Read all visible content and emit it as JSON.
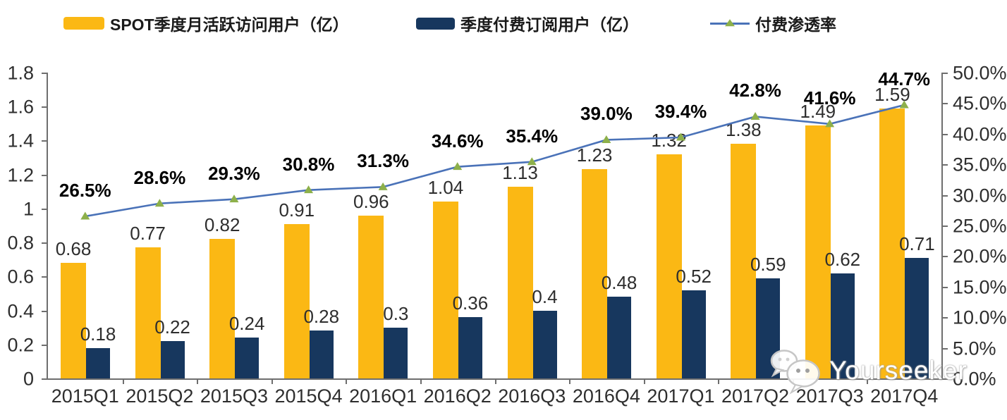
{
  "chart_data": {
    "type": "combo-bar-line",
    "categories": [
      "2015Q1",
      "2015Q2",
      "2015Q3",
      "2015Q4",
      "2016Q1",
      "2016Q2",
      "2016Q3",
      "2016Q4",
      "2017Q1",
      "2017Q2",
      "2017Q3",
      "2017Q4"
    ],
    "series": [
      {
        "name": "SPOT季度月活跃访问用户（亿）",
        "type": "bar",
        "axis": "left",
        "color": "#FBB814",
        "values": [
          0.68,
          0.77,
          0.82,
          0.91,
          0.96,
          1.04,
          1.13,
          1.23,
          1.32,
          1.38,
          1.49,
          1.59
        ],
        "labels": [
          "0.68",
          "0.77",
          "0.82",
          "0.91",
          "0.96",
          "1.04",
          "1.13",
          "1.23",
          "1.32",
          "1.38",
          "1.49",
          "1.59"
        ]
      },
      {
        "name": "季度付费订阅用户（亿）",
        "type": "bar",
        "axis": "left",
        "color": "#17375E",
        "values": [
          0.18,
          0.22,
          0.24,
          0.28,
          0.3,
          0.36,
          0.4,
          0.48,
          0.52,
          0.59,
          0.62,
          0.71
        ],
        "labels": [
          "0.18",
          "0.22",
          "0.24",
          "0.28",
          "0.3",
          "0.36",
          "0.4",
          "0.48",
          "0.52",
          "0.59",
          "0.62",
          "0.71"
        ]
      },
      {
        "name": "付费渗透率",
        "type": "line",
        "axis": "right",
        "color": "#4A72B8",
        "marker_color": "#8DB04A",
        "values": [
          26.5,
          28.6,
          29.3,
          30.8,
          31.3,
          34.6,
          35.4,
          39.0,
          39.4,
          42.8,
          41.6,
          44.7
        ],
        "labels": [
          "26.5%",
          "28.6%",
          "29.3%",
          "30.8%",
          "31.3%",
          "34.6%",
          "35.4%",
          "39.0%",
          "39.4%",
          "42.8%",
          "41.6%",
          "44.7%"
        ]
      }
    ],
    "left_axis": {
      "min": 0,
      "max": 1.8,
      "step": 0.2,
      "ticks": [
        "0",
        "0.2",
        "0.4",
        "0.6",
        "0.8",
        "1",
        "1.2",
        "1.4",
        "1.6",
        "1.8"
      ]
    },
    "right_axis": {
      "min": 0,
      "max": 50,
      "step": 5,
      "ticks": [
        "0.0%",
        "5.0%",
        "10.0%",
        "15.0%",
        "20.0%",
        "25.0%",
        "30.0%",
        "35.0%",
        "40.0%",
        "45.0%",
        "50.0%"
      ]
    },
    "grid": false,
    "legend_position": "top"
  },
  "watermark": {
    "text": "Yourseeker",
    "icon": "wechat-chat-bubbles-icon"
  }
}
